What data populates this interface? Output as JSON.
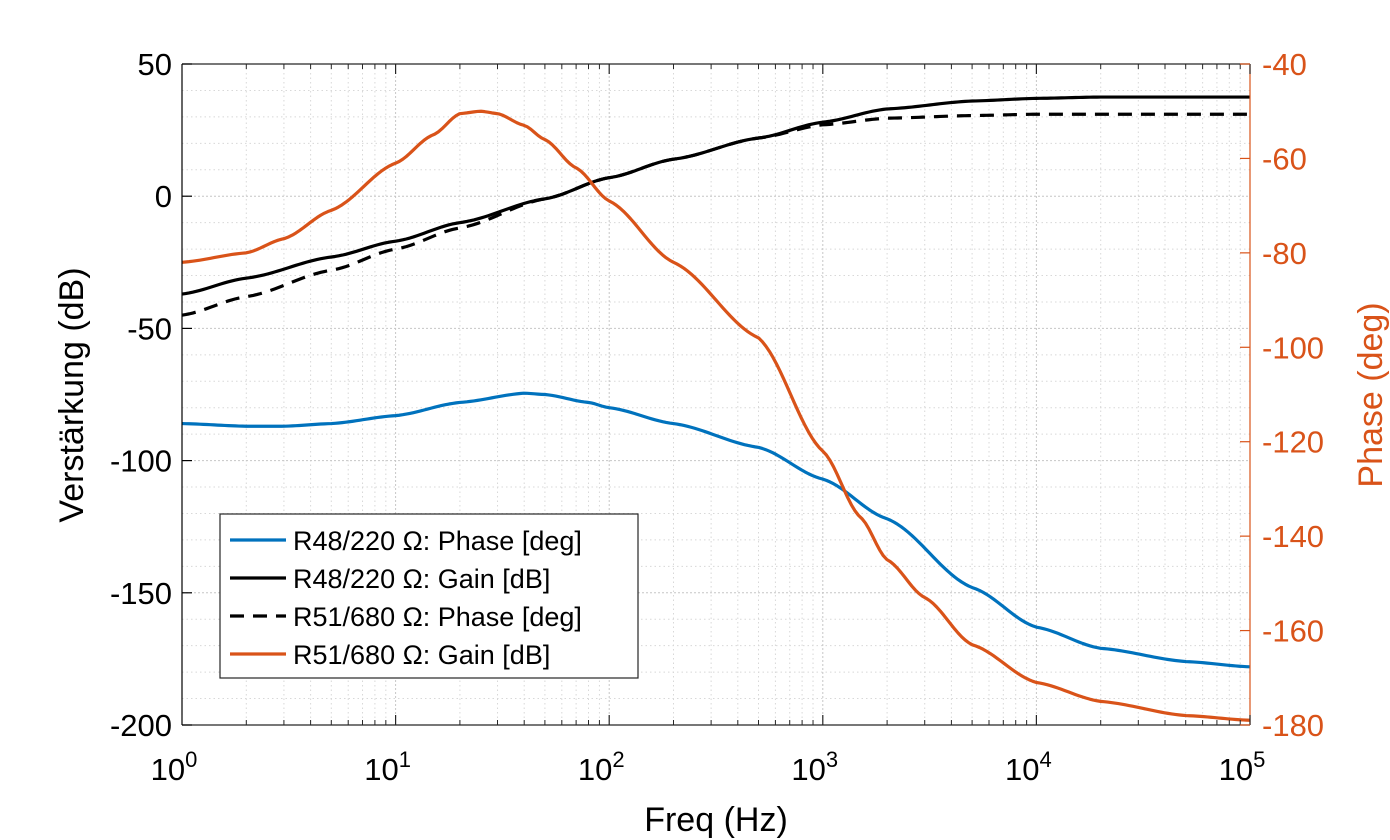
{
  "colors": {
    "left_axis": "#000000",
    "right_axis": "#D95319",
    "blue": "#0072BD",
    "orange": "#D95319",
    "black": "#000000"
  },
  "chart_data": {
    "type": "line",
    "xlabel": "Freq (Hz)",
    "ylabel_left": "Verstärkung (dB)",
    "ylabel_right": "Phase (deg)",
    "xscale": "log",
    "xlim": [
      1,
      100000
    ],
    "ylim_left": [
      -200,
      50
    ],
    "ylim_right": [
      -180,
      -40
    ],
    "grid": true,
    "minor_grid": true,
    "legend_location": "lower-left",
    "x_ticks": [
      {
        "value": 1,
        "base": "10",
        "exp": "0"
      },
      {
        "value": 10,
        "base": "10",
        "exp": "1"
      },
      {
        "value": 100,
        "base": "10",
        "exp": "2"
      },
      {
        "value": 1000,
        "base": "10",
        "exp": "3"
      },
      {
        "value": 10000,
        "base": "10",
        "exp": "4"
      },
      {
        "value": 100000,
        "base": "10",
        "exp": "5"
      }
    ],
    "y_ticks_left": [
      {
        "value": 50,
        "label": "50"
      },
      {
        "value": 0,
        "label": "0"
      },
      {
        "value": -50,
        "label": "-50"
      },
      {
        "value": -100,
        "label": "-100"
      },
      {
        "value": -150,
        "label": "-150"
      },
      {
        "value": -200,
        "label": "-200"
      }
    ],
    "y_ticks_right": [
      {
        "value": -40,
        "label": "-40"
      },
      {
        "value": -60,
        "label": "-60"
      },
      {
        "value": -80,
        "label": "-80"
      },
      {
        "value": -100,
        "label": "-100"
      },
      {
        "value": -120,
        "label": "-120"
      },
      {
        "value": -140,
        "label": "-140"
      },
      {
        "value": -160,
        "label": "-160"
      },
      {
        "value": -180,
        "label": "-180"
      }
    ],
    "series": [
      {
        "name": "R48/220 Ω: Phase [deg]",
        "axis": "left",
        "color": "#0072BD",
        "dash": "solid",
        "points": [
          [
            1,
            -86
          ],
          [
            2,
            -87
          ],
          [
            3,
            -87
          ],
          [
            5,
            -86
          ],
          [
            10,
            -83
          ],
          [
            20,
            -78
          ],
          [
            40,
            -74.5
          ],
          [
            50,
            -75
          ],
          [
            80,
            -78
          ],
          [
            100,
            -80
          ],
          [
            200,
            -86
          ],
          [
            500,
            -95
          ],
          [
            1000,
            -107
          ],
          [
            2000,
            -122
          ],
          [
            5000,
            -148
          ],
          [
            10000,
            -163
          ],
          [
            20000,
            -171
          ],
          [
            50000,
            -176
          ],
          [
            100000,
            -178
          ]
        ]
      },
      {
        "name": "R48/220 Ω: Gain [dB]",
        "axis": "left",
        "color": "#000000",
        "dash": "solid",
        "points": [
          [
            1,
            -37
          ],
          [
            2,
            -31
          ],
          [
            5,
            -23
          ],
          [
            10,
            -17
          ],
          [
            20,
            -10
          ],
          [
            50,
            -1
          ],
          [
            100,
            7
          ],
          [
            200,
            14
          ],
          [
            500,
            22
          ],
          [
            1000,
            28
          ],
          [
            2000,
            33
          ],
          [
            5000,
            36
          ],
          [
            10000,
            37
          ],
          [
            20000,
            37.5
          ],
          [
            100000,
            37.5
          ]
        ]
      },
      {
        "name": "R51/680 Ω: Phase [deg]",
        "axis": "left",
        "color": "#000000",
        "dash": "dashed",
        "points": [
          [
            1,
            -45
          ],
          [
            2,
            -38
          ],
          [
            5,
            -28
          ],
          [
            10,
            -20
          ],
          [
            20,
            -12
          ],
          [
            50,
            -1
          ],
          [
            100,
            7
          ],
          [
            200,
            14
          ],
          [
            500,
            22
          ],
          [
            1000,
            27
          ],
          [
            2000,
            29.5
          ],
          [
            5000,
            30.5
          ],
          [
            10000,
            31
          ],
          [
            100000,
            31
          ]
        ]
      },
      {
        "name": "R51/680 Ω: Gain [dB]",
        "axis": "right",
        "color": "#D95319",
        "dash": "solid",
        "points": [
          [
            1,
            -82
          ],
          [
            2,
            -80
          ],
          [
            3,
            -77
          ],
          [
            5,
            -71
          ],
          [
            10,
            -61
          ],
          [
            15,
            -55
          ],
          [
            20,
            -50.5
          ],
          [
            25,
            -50
          ],
          [
            30,
            -50.5
          ],
          [
            40,
            -53
          ],
          [
            50,
            -56
          ],
          [
            70,
            -62
          ],
          [
            100,
            -69
          ],
          [
            200,
            -82
          ],
          [
            500,
            -98
          ],
          [
            1000,
            -122
          ],
          [
            1500,
            -136
          ],
          [
            2000,
            -145
          ],
          [
            3000,
            -153
          ],
          [
            5000,
            -163
          ],
          [
            10000,
            -171
          ],
          [
            20000,
            -175
          ],
          [
            50000,
            -178
          ],
          [
            100000,
            -179
          ]
        ]
      }
    ]
  }
}
